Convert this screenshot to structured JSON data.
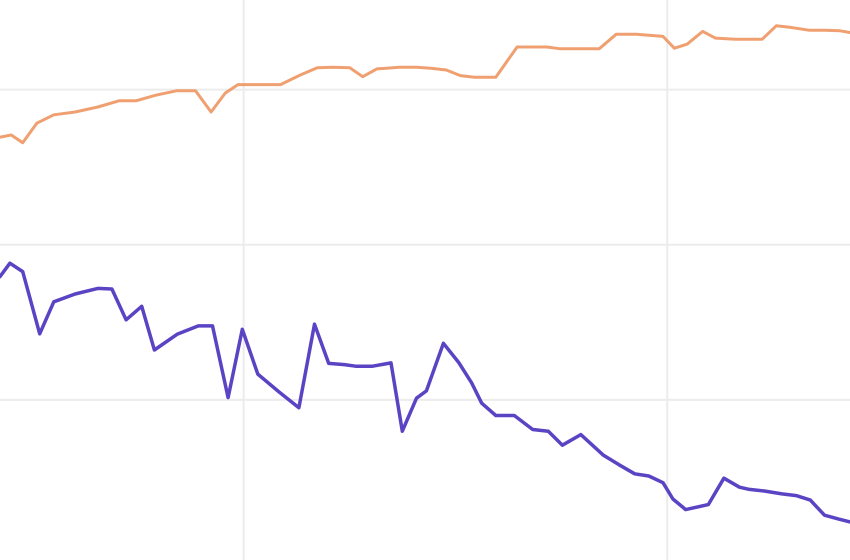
{
  "chart_data": {
    "type": "line",
    "xlim": [
      0,
      60
    ],
    "ylim": [
      0,
      100
    ],
    "grid": true,
    "legend": "none",
    "x_gridlines": [
      17.2,
      47.1
    ],
    "y_gridlines": [
      28.6,
      56.3,
      84.0
    ],
    "series": [
      {
        "color": "#f0a070",
        "x": [
          0,
          0.8,
          1.6,
          2.6,
          3.8,
          5.3,
          6.9,
          8.4,
          9.6,
          11.0,
          12.5,
          13.8,
          14.9,
          15.9,
          16.8,
          18.3,
          19.8,
          21.2,
          22.4,
          23.5,
          24.7,
          25.6,
          26.6,
          28.2,
          29.4,
          30.4,
          31.5,
          32.5,
          33.5,
          35.0,
          36.5,
          37.5,
          38.6,
          39.5,
          40.7,
          42.3,
          43.5,
          44.9,
          46.8,
          47.6,
          48.5,
          49.6,
          50.5,
          51.9,
          52.7,
          53.8,
          54.8,
          55.8,
          57.1,
          58.2,
          59.3,
          60.0
        ],
        "y": [
          75.5,
          75.9,
          74.5,
          78.0,
          79.5,
          80.0,
          80.9,
          82.0,
          82.0,
          83.0,
          83.8,
          83.8,
          80.0,
          83.4,
          84.9,
          84.9,
          84.9,
          86.6,
          87.9,
          88.0,
          87.9,
          86.3,
          87.7,
          88.0,
          88.0,
          87.8,
          87.5,
          86.5,
          86.2,
          86.2,
          91.6,
          91.6,
          91.6,
          91.3,
          91.3,
          91.3,
          93.9,
          93.9,
          93.5,
          91.4,
          92.1,
          94.4,
          93.2,
          93.0,
          93.0,
          93.0,
          95.4,
          95.1,
          94.6,
          94.6,
          94.5,
          94.2
        ]
      },
      {
        "color": "#5b44c4",
        "x": [
          0,
          0.7,
          1.6,
          2.8,
          3.8,
          5.3,
          6.9,
          7.9,
          8.9,
          10.0,
          10.9,
          12.5,
          14.0,
          15.0,
          16.1,
          17.1,
          18.2,
          19.7,
          21.1,
          22.2,
          23.2,
          24.3,
          25.1,
          26.3,
          27.6,
          28.4,
          29.4,
          30.1,
          31.3,
          32.4,
          33.3,
          34.0,
          35.0,
          36.3,
          37.6,
          38.7,
          39.7,
          41.0,
          42.6,
          43.7,
          44.8,
          45.8,
          46.8,
          47.5,
          48.4,
          50.0,
          51.1,
          52.2,
          52.9,
          54.0,
          55.2,
          56.2,
          57.2,
          58.2,
          59.2,
          60.0
        ],
        "y": [
          50.6,
          53.0,
          51.5,
          40.4,
          46.1,
          47.5,
          48.5,
          48.4,
          42.9,
          45.3,
          37.5,
          40.3,
          41.8,
          41.8,
          29.0,
          41.2,
          33.2,
          30.0,
          27.2,
          42.1,
          35.1,
          34.9,
          34.6,
          34.6,
          35.2,
          23.0,
          28.9,
          30.2,
          38.7,
          35.2,
          31.6,
          28.0,
          25.8,
          25.8,
          23.3,
          23.0,
          20.5,
          22.4,
          18.7,
          17.0,
          15.4,
          15.0,
          13.8,
          10.9,
          9.0,
          9.9,
          14.6,
          13.0,
          12.6,
          12.3,
          11.8,
          11.5,
          10.7,
          8.0,
          7.3,
          6.8
        ]
      }
    ]
  }
}
